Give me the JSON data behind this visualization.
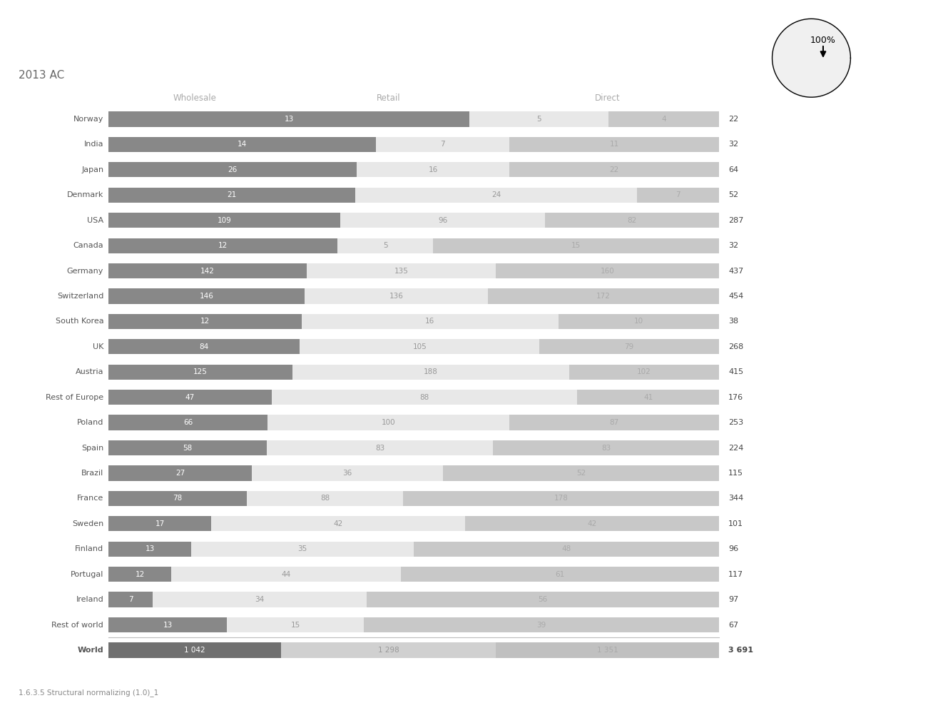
{
  "title": "2013 AC",
  "subtitle": "1.6.3.5 Structural normalizing (1.0)_1",
  "column_headers": [
    "Wholesale",
    "Retail",
    "Direct"
  ],
  "countries": [
    "Norway",
    "India",
    "Japan",
    "Denmark",
    "USA",
    "Canada",
    "Germany",
    "Switzerland",
    "South Korea",
    "UK",
    "Austria",
    "Rest of Europe",
    "Poland",
    "Spain",
    "Brazil",
    "France",
    "Sweden",
    "Finland",
    "Portugal",
    "Ireland",
    "Rest of world",
    "World"
  ],
  "wholesale": [
    13,
    14,
    26,
    21,
    109,
    12,
    142,
    146,
    12,
    84,
    125,
    47,
    66,
    58,
    27,
    78,
    17,
    13,
    12,
    7,
    13,
    1042
  ],
  "retail": [
    5,
    7,
    16,
    24,
    96,
    5,
    135,
    136,
    16,
    105,
    188,
    88,
    100,
    83,
    36,
    88,
    42,
    35,
    44,
    34,
    15,
    1298
  ],
  "direct": [
    4,
    11,
    22,
    7,
    82,
    15,
    160,
    172,
    10,
    79,
    102,
    41,
    87,
    83,
    52,
    178,
    42,
    48,
    61,
    56,
    39,
    1351
  ],
  "totals": [
    22,
    32,
    64,
    52,
    287,
    32,
    437,
    454,
    38,
    268,
    415,
    176,
    253,
    224,
    115,
    344,
    101,
    96,
    117,
    97,
    67,
    3691
  ],
  "total_labels": [
    "22",
    "32",
    "64",
    "52",
    "287",
    "32",
    "437",
    "454",
    "38",
    "268",
    "415",
    "176",
    "253",
    "224",
    "115",
    "344",
    "101",
    "96",
    "117",
    "97",
    "67",
    "3 691"
  ],
  "wholesale_labels": [
    "13",
    "14",
    "26",
    "21",
    "109",
    "12",
    "142",
    "146",
    "12",
    "84",
    "125",
    "47",
    "66",
    "58",
    "27",
    "78",
    "17",
    "13",
    "12",
    "7",
    "13",
    "1 042"
  ],
  "retail_labels": [
    "5",
    "7",
    "16",
    "24",
    "96",
    "5",
    "135",
    "136",
    "16",
    "105",
    "188",
    "88",
    "100",
    "83",
    "36",
    "88",
    "42",
    "35",
    "44",
    "34",
    "15",
    "1 298"
  ],
  "direct_labels": [
    "4",
    "11",
    "22",
    "7",
    "82",
    "15",
    "160",
    "172",
    "10",
    "79",
    "102",
    "41",
    "87",
    "83",
    "52",
    "178",
    "42",
    "48",
    "61",
    "56",
    "39",
    "1 351"
  ],
  "colors": {
    "wholesale_dark": "#888888",
    "wholesale_world": "#707070",
    "retail_light": "#e8e8e8",
    "retail_world": "#d0d0d0",
    "direct_mid": "#c8c8c8",
    "direct_world": "#c0c0c0",
    "bar_bg": "#f5f5f5",
    "text_white": "#ffffff",
    "text_gray_retail": "#999999",
    "text_gray_direct": "#aaaaaa",
    "text_dark": "#555555",
    "header_color": "#aaaaaa",
    "separator": "#bbbbbb"
  },
  "figsize": [
    13.15,
    9.85
  ],
  "dpi": 100
}
